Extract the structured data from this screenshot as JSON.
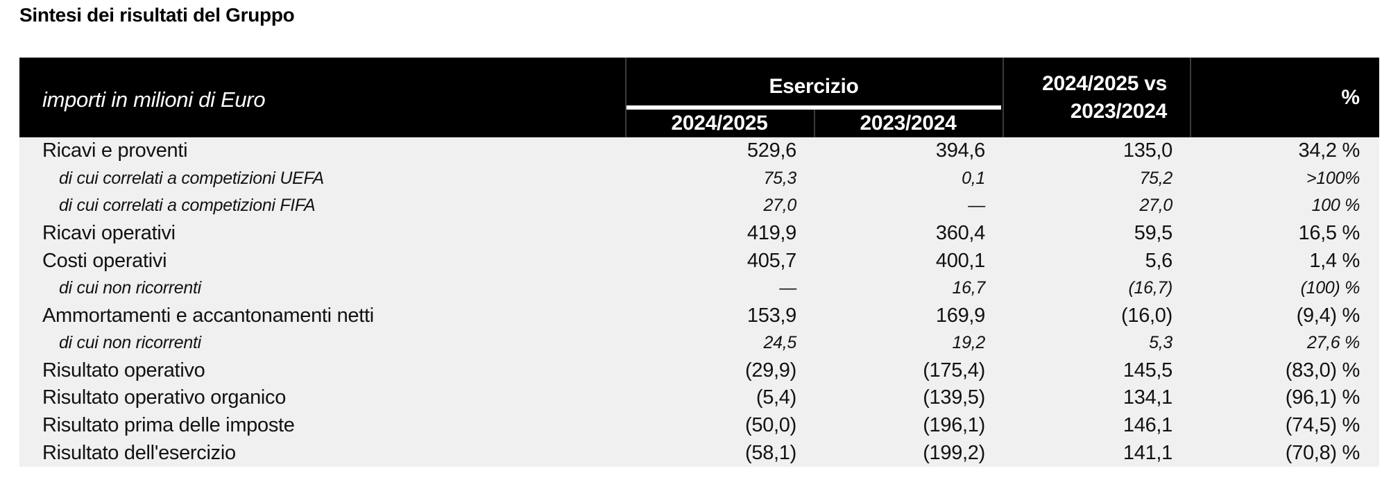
{
  "page": {
    "title": "Sintesi dei risultati del Gruppo"
  },
  "colors": {
    "header_bg": "#000000",
    "header_text": "#ffffff",
    "body_bg": "#EFF0EF",
    "body_text": "#121212",
    "header_divider": "#3b3b3b"
  },
  "table": {
    "unit_label": "importi in milioni di Euro",
    "group_label": "Esercizio",
    "col1_label": "2024/2025",
    "col2_label": "2023/2024",
    "vs_label_line1": "2024/2025 vs",
    "vs_label_line2": "2023/2024",
    "pct_label": "%",
    "rows": [
      {
        "label": "Ricavi e proventi",
        "italic": false,
        "v2024_2025": "529,6",
        "v2023_2024": "394,6",
        "delta": "135,0",
        "pct": "34,2 %"
      },
      {
        "label": "di cui correlati a competizioni UEFA",
        "italic": true,
        "v2024_2025": "75,3",
        "v2023_2024": "0,1",
        "delta": "75,2",
        "pct": ">100%"
      },
      {
        "label": "di cui correlati a competizioni FIFA",
        "italic": true,
        "v2024_2025": "27,0",
        "v2023_2024": "—",
        "delta": "27,0",
        "pct": "100 %"
      },
      {
        "label": "Ricavi operativi",
        "italic": false,
        "v2024_2025": "419,9",
        "v2023_2024": "360,4",
        "delta": "59,5",
        "pct": "16,5 %"
      },
      {
        "label": "Costi operativi",
        "italic": false,
        "v2024_2025": "405,7",
        "v2023_2024": "400,1",
        "delta": "5,6",
        "pct": "1,4 %"
      },
      {
        "label": "di cui non ricorrenti",
        "italic": true,
        "v2024_2025": "—",
        "v2023_2024": "16,7",
        "delta": "(16,7)",
        "pct": "(100) %"
      },
      {
        "label": "Ammortamenti e accantonamenti netti",
        "italic": false,
        "v2024_2025": "153,9",
        "v2023_2024": "169,9",
        "delta": "(16,0)",
        "pct": "(9,4) %"
      },
      {
        "label": "di cui non ricorrenti",
        "italic": true,
        "v2024_2025": "24,5",
        "v2023_2024": "19,2",
        "delta": "5,3",
        "pct": "27,6 %"
      },
      {
        "label": "Risultato operativo",
        "italic": false,
        "v2024_2025": "(29,9)",
        "v2023_2024": "(175,4)",
        "delta": "145,5",
        "pct": "(83,0) %"
      },
      {
        "label": "Risultato operativo organico",
        "italic": false,
        "v2024_2025": "(5,4)",
        "v2023_2024": "(139,5)",
        "delta": "134,1",
        "pct": "(96,1) %"
      },
      {
        "label": "Risultato prima delle imposte",
        "italic": false,
        "v2024_2025": "(50,0)",
        "v2023_2024": "(196,1)",
        "delta": "146,1",
        "pct": "(74,5) %"
      },
      {
        "label": "Risultato dell'esercizio",
        "italic": false,
        "v2024_2025": "(58,1)",
        "v2023_2024": "(199,2)",
        "delta": "141,1",
        "pct": "(70,8) %"
      }
    ]
  }
}
